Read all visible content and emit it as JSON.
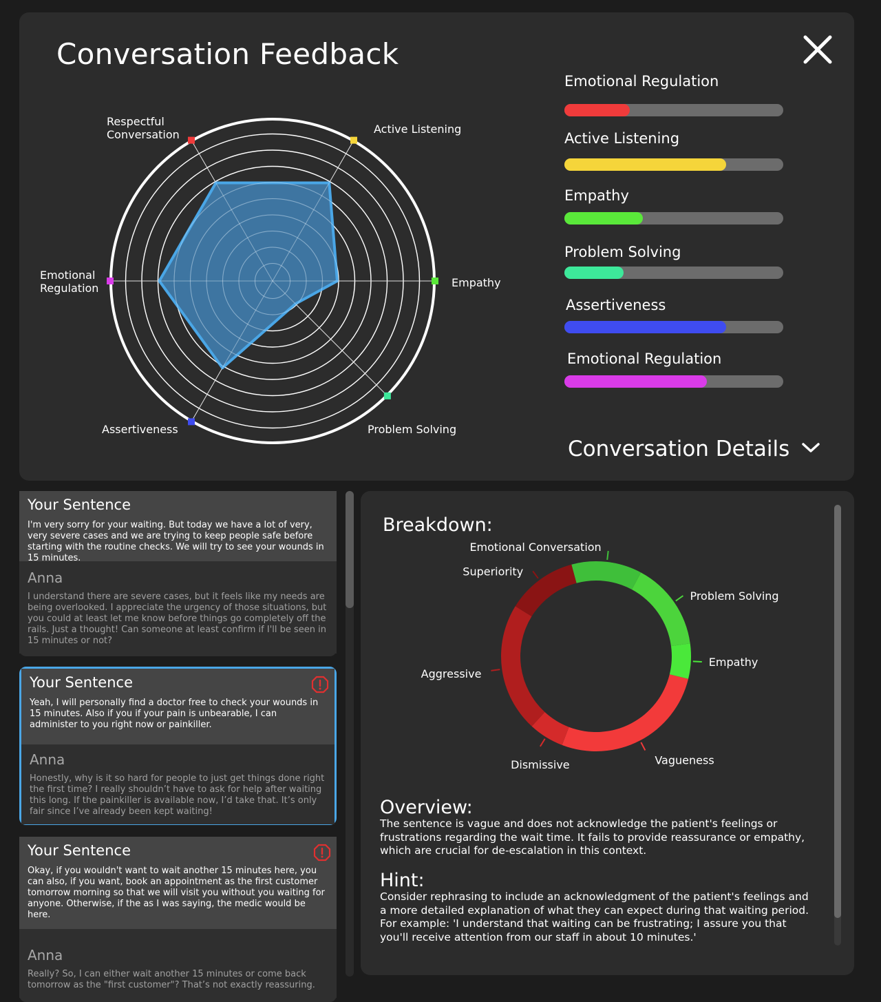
{
  "header": {
    "title": "Conversation Feedback"
  },
  "colors": {
    "respectful": "#f03b3b",
    "active_listening": "#f5d53a",
    "empathy": "#5ae83a",
    "problem_solving": "#3de89a",
    "assertiveness": "#3f4cf0",
    "emotional_regulation": "#d93be8",
    "radar_fill": "#3f79a8",
    "radar_stroke": "#4aa6e6"
  },
  "radar": {
    "axis_labels": {
      "respectful": [
        "Respectful",
        "Conversation"
      ],
      "active_listening": "Active Listening",
      "empathy": "Empathy",
      "problem_solving": "Problem Solving",
      "assertiveness": "Assertiveness",
      "emotional_regulation": [
        "Emotional",
        "Regulation"
      ]
    },
    "values": {
      "respectful": 0.7,
      "active_listening": 0.7,
      "empathy": 0.4,
      "problem_solving": 0.2,
      "assertiveness": 0.62,
      "emotional_regulation": 0.7
    }
  },
  "bars": [
    {
      "label": "Emotional Regulation",
      "value": 0.3,
      "color": "#f03b3b"
    },
    {
      "label": "Active Listening",
      "value": 0.74,
      "color": "#f5d53a"
    },
    {
      "label": "Empathy",
      "value": 0.36,
      "color": "#5ae83a"
    },
    {
      "label": "Problem Solving",
      "value": 0.27,
      "color": "#3de89a"
    },
    {
      "label": "Assertiveness",
      "value": 0.74,
      "color": "#3f4cf0"
    },
    {
      "label": "Emotional Regulation",
      "value": 0.65,
      "color": "#d93be8"
    }
  ],
  "details": {
    "label": "Conversation Details"
  },
  "conversation": [
    {
      "your_label": "Your Sentence",
      "your_text": "I'm very sorry for your waiting. But today we have a lot of very, very severe cases and we are trying to keep people safe before starting with the routine checks. We will try to see your wounds in 15 minutes.",
      "anna_label": "Anna",
      "anna_text": "I understand there are severe cases, but it feels like my needs are being overlooked. I appreciate the urgency of those situations, but you could at least let me know before things go completely off the rails. Just a thought! Can someone at least confirm if I'll be seen in 15 minutes or not?"
    },
    {
      "your_label": "Your Sentence",
      "your_text": "Yeah, I will personally find a doctor free to check your wounds in 15 minutes. Also if you if your pain is unbearable, I can administer to you right now or painkiller.",
      "anna_label": "Anna",
      "anna_text": "Honestly, why is it so hard for people to just get things done right the first time? I really shouldn’t have to ask for help after waiting this long. If the painkiller is available now, I’d take that. It’s only fair since I’ve already been kept waiting!"
    },
    {
      "your_label": "Your Sentence",
      "your_text": "Okay, if you wouldn't want to wait another 15 minutes here, you can also, if you want, book an appointment as the first customer tomorrow morning so that we will visit you without you waiting for anyone. Otherwise, if the as I was saying, the medic would be here.",
      "anna_label": "Anna",
      "anna_text": "Really? So, I can either wait another 15 minutes or come back tomorrow as the \"first customer\"? That’s not exactly reassuring."
    }
  ],
  "breakdown": {
    "title": "Breakdown:",
    "overview_head": "Overview:",
    "overview_text": "The sentence is vague and does not acknowledge the patient's feelings or frustrations regarding the wait time. It fails to provide reassurance or empathy, which are crucial for de-escalation in this context.",
    "hint_head": "Hint:",
    "hint_text": "Consider rephrasing to include an acknowledgment of the patient's feelings and a more detailed explanation of what they can expect during that waiting period. For example: 'I understand that waiting can be frustrating; I assure you that you'll receive attention from our staff in about 10 minutes.'"
  },
  "chart_data": {
    "type": "pie",
    "categories": [
      "Emotional Conversation",
      "Problem Solving",
      "Empathy",
      "Vagueness",
      "Dismissive",
      "Aggressive",
      "Superiority"
    ],
    "values": [
      12,
      15,
      6,
      27,
      6,
      22,
      12
    ],
    "colors": [
      "#3fbf3a",
      "#4cd43c",
      "#4ae83a",
      "#f23a3a",
      "#d42a2a",
      "#b01e1e",
      "#8a1414"
    ],
    "title": "Breakdown:"
  }
}
